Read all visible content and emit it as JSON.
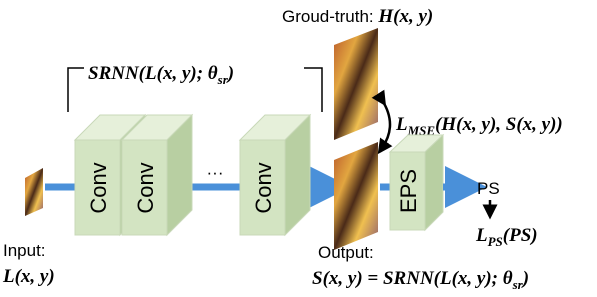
{
  "ground_truth": {
    "label": "Groud-truth: ",
    "math": "H(x, y)"
  },
  "srnn_label": {
    "main": "SRNN(L(x, y);  θ",
    "sub": "sr",
    "end": ")"
  },
  "layers": [
    {
      "label": "Conv"
    },
    {
      "label": "Conv"
    },
    {
      "label": "Conv"
    }
  ],
  "ellipsis": "···",
  "eps": "EPS",
  "ps": "PS",
  "mse_loss": {
    "main": "L",
    "sub": "MSE",
    "args": "(H(x, y), S(x, y))"
  },
  "ps_loss": {
    "main": "L",
    "sub": "PS",
    "args": "(PS)"
  },
  "input": {
    "label": "Input:",
    "math": "L(x, y)"
  },
  "output": {
    "label": "Output:",
    "math": "S(x, y) = SRNN(L(x, y);  θ",
    "sub": "sr",
    "end": ")"
  }
}
